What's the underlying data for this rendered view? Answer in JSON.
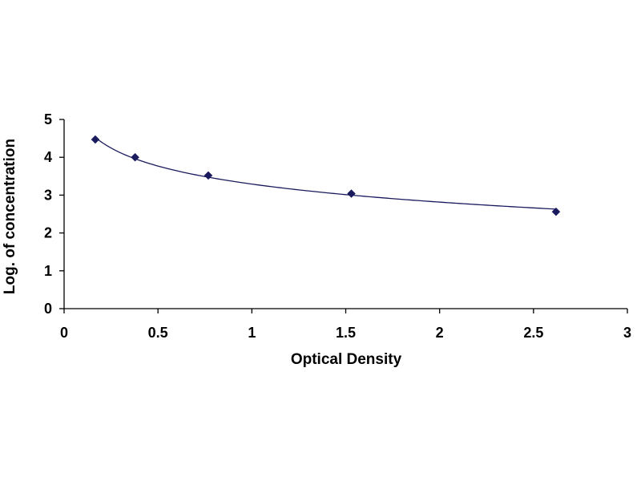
{
  "chart_data": {
    "type": "scatter",
    "title": "",
    "xlabel": "Optical Density",
    "ylabel": "Log. of concentration",
    "xlim": [
      0,
      3
    ],
    "ylim": [
      0,
      5
    ],
    "x_ticks": [
      "0",
      "0.5",
      "1",
      "1.5",
      "2",
      "2.5",
      "3"
    ],
    "y_ticks": [
      "0",
      "1",
      "2",
      "3",
      "4",
      "5"
    ],
    "grid": false,
    "legend": "none",
    "marker": "diamond",
    "marker_color": "#1a1a5e",
    "line_color": "#1a1a5e",
    "trendline": "logarithmic",
    "series": [
      {
        "x": [
          0.166,
          0.378,
          0.768,
          1.53,
          2.62
        ],
        "y": [
          4.47,
          4.0,
          3.52,
          3.04,
          2.56
        ]
      }
    ]
  }
}
